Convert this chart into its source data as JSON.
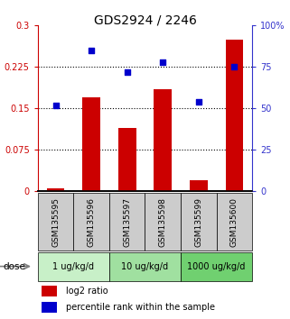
{
  "title": "GDS2924 / 2246",
  "samples": [
    "GSM135595",
    "GSM135596",
    "GSM135597",
    "GSM135598",
    "GSM135599",
    "GSM135600"
  ],
  "log2_ratio": [
    0.005,
    0.17,
    0.115,
    0.185,
    0.02,
    0.275
  ],
  "percentile_rank": [
    52,
    85,
    72,
    78,
    54,
    75
  ],
  "dose_groups": [
    {
      "label": "1 ug/kg/d",
      "color": "#c8f0c8"
    },
    {
      "label": "10 ug/kg/d",
      "color": "#a0e0a0"
    },
    {
      "label": "1000 ug/kg/d",
      "color": "#70d070"
    }
  ],
  "bar_color": "#cc0000",
  "dot_color": "#0000cc",
  "left_axis_color": "#cc0000",
  "right_axis_color": "#3333cc",
  "ylim_left": [
    0,
    0.3
  ],
  "ylim_right": [
    0,
    100
  ],
  "yticks_left": [
    0,
    0.075,
    0.15,
    0.225,
    0.3
  ],
  "ytick_labels_left": [
    "0",
    "0.075",
    "0.15",
    "0.225",
    "0.3"
  ],
  "yticks_right": [
    0,
    25,
    50,
    75,
    100
  ],
  "ytick_labels_right": [
    "0",
    "25",
    "50",
    "75",
    "100%"
  ],
  "hlines": [
    0.075,
    0.15,
    0.225
  ],
  "bar_width": 0.5,
  "legend_red": "log2 ratio",
  "legend_blue": "percentile rank within the sample",
  "dose_label": "dose",
  "sample_box_color": "#cccccc"
}
